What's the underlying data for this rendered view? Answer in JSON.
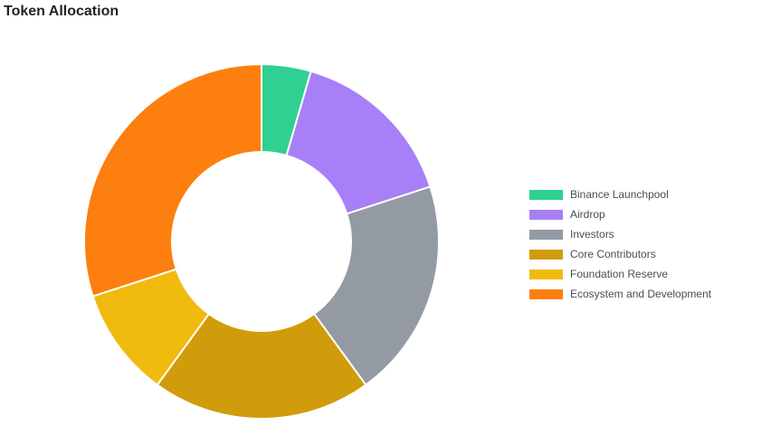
{
  "chart_data": {
    "type": "pie",
    "title": "Token Allocation",
    "donut": true,
    "legend_position": "right",
    "categories": [
      "Binance Launchpool",
      "Airdrop",
      "Investors",
      "Core Contributors",
      "Foundation Reserve",
      "Ecosystem and Development"
    ],
    "values": [
      4.5,
      15.5,
      20,
      20,
      10,
      30
    ],
    "colors": [
      "#2ed191",
      "#a77ff6",
      "#939aa4",
      "#d09c0b",
      "#f1ba0f",
      "#fd7f0f"
    ]
  }
}
